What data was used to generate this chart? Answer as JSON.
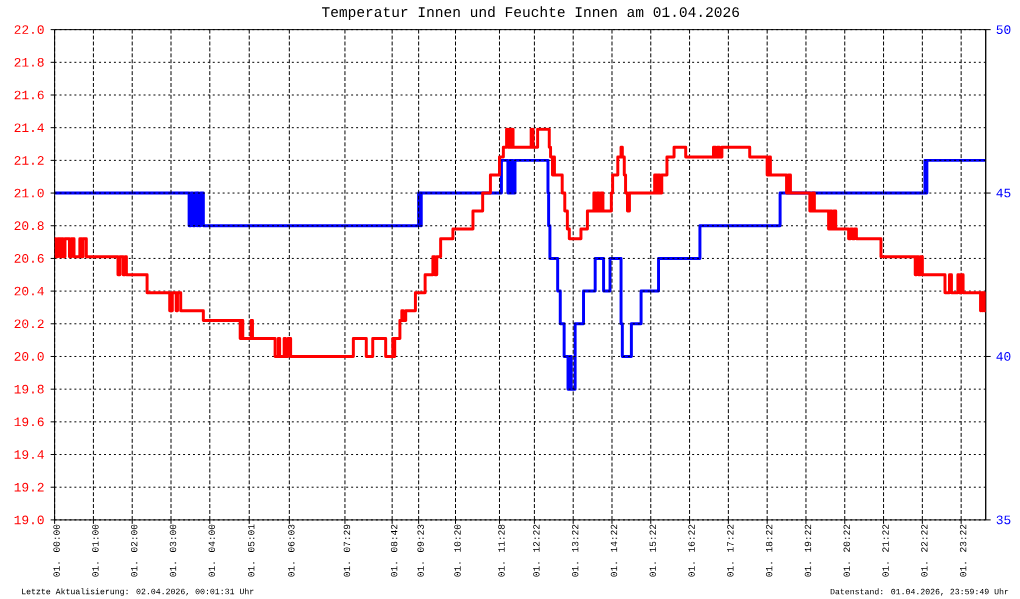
{
  "chart_data": {
    "type": "step",
    "title": "Temperatur Innen und Feuchte Innen am 01.04.2026",
    "annotations": [
      "Letzte Aktualisierung: 02.04.2026, 00:01:31 Uhr",
      "Datenstand: 01.04.2026, 23:59:49 Uhr"
    ],
    "xlim": [
      "2026-04-01T00:00",
      "2026-04-02T00:00"
    ],
    "xticks": [
      {
        "value": "2026-04-01T00:00",
        "label": "01. 00:00"
      },
      {
        "value": "2026-04-01T01:00",
        "label": "01. 01:00"
      },
      {
        "value": "2026-04-01T02:00",
        "label": "01. 02:00"
      },
      {
        "value": "2026-04-01T03:00",
        "label": "01. 03:00"
      },
      {
        "value": "2026-04-01T04:00",
        "label": "01. 04:00"
      },
      {
        "value": "2026-04-01T05:01",
        "label": "01. 05:01"
      },
      {
        "value": "2026-04-01T06:03",
        "label": "01. 06:03"
      },
      {
        "value": "2026-04-01T07:29",
        "label": "01. 07:29"
      },
      {
        "value": "2026-04-01T08:42",
        "label": "01. 08:42"
      },
      {
        "value": "2026-04-01T09:23",
        "label": "01. 09:23"
      },
      {
        "value": "2026-04-01T10:20",
        "label": "01. 10:20"
      },
      {
        "value": "2026-04-01T11:28",
        "label": "01. 11:28"
      },
      {
        "value": "2026-04-01T12:22",
        "label": "01. 12:22"
      },
      {
        "value": "2026-04-01T13:22",
        "label": "01. 13:22"
      },
      {
        "value": "2026-04-01T14:22",
        "label": "01. 14:22"
      },
      {
        "value": "2026-04-01T15:22",
        "label": "01. 15:22"
      },
      {
        "value": "2026-04-01T16:22",
        "label": "01. 16:22"
      },
      {
        "value": "2026-04-01T17:22",
        "label": "01. 17:22"
      },
      {
        "value": "2026-04-01T18:22",
        "label": "01. 18:22"
      },
      {
        "value": "2026-04-01T19:22",
        "label": "01. 19:22"
      },
      {
        "value": "2026-04-01T20:22",
        "label": "01. 20:22"
      },
      {
        "value": "2026-04-01T21:22",
        "label": "01. 21:22"
      },
      {
        "value": "2026-04-01T22:22",
        "label": "01. 22:22"
      },
      {
        "value": "2026-04-01T23:22",
        "label": "01. 23:22"
      }
    ],
    "ylim": [
      19,
      22
    ],
    "yticks": [
      {
        "value": 19,
        "label": "19.0"
      },
      19.2,
      19.4,
      19.6,
      19.8,
      {
        "value": 20,
        "label": "20.0"
      },
      20.2,
      20.4,
      20.6,
      20.8,
      {
        "value": 21,
        "label": "21.0"
      },
      21.2,
      21.4,
      21.6,
      21.8,
      {
        "value": 22,
        "label": "22.0"
      }
    ],
    "y2lim": [
      35,
      50
    ],
    "y2ticks": [
      35,
      40,
      45,
      50
    ],
    "grid": true,
    "series": [
      {
        "color": "#ff0000",
        "x": [
          "2026-04-01T00:00",
          "2026-04-01T00:02",
          "2026-04-01T00:05",
          "2026-04-01T00:09",
          "2026-04-01T00:11",
          "2026-04-01T00:13",
          "2026-04-01T00:16",
          "2026-04-01T00:23",
          "2026-04-01T00:26",
          "2026-04-01T00:30",
          "2026-04-01T00:39",
          "2026-04-01T00:42",
          "2026-04-01T00:44",
          "2026-04-01T00:49",
          "2026-04-01T01:38",
          "2026-04-01T01:41",
          "2026-04-01T01:46",
          "2026-04-01T01:49",
          "2026-04-01T01:51",
          "2026-04-01T02:23",
          "2026-04-01T02:58",
          "2026-04-01T03:02",
          "2026-04-01T03:08",
          "2026-04-01T03:10",
          "2026-04-01T03:15",
          "2026-04-01T03:50",
          "2026-04-01T04:47",
          "2026-04-01T04:49",
          "2026-04-01T04:51",
          "2026-04-01T05:04",
          "2026-04-01T05:06",
          "2026-04-01T05:41",
          "2026-04-01T05:46",
          "2026-04-01T05:48",
          "2026-04-01T05:55",
          "2026-04-01T05:57",
          "2026-04-01T06:01",
          "2026-04-01T06:05",
          "2026-04-01T07:42",
          "2026-04-01T08:02",
          "2026-04-01T08:12",
          "2026-04-01T08:32",
          "2026-04-01T08:43",
          "2026-04-01T08:44",
          "2026-04-01T08:46",
          "2026-04-01T08:54",
          "2026-04-01T08:57",
          "2026-04-01T08:59",
          "2026-04-01T09:03",
          "2026-04-01T09:18",
          "2026-04-01T09:33",
          "2026-04-01T09:45",
          "2026-04-01T09:48",
          "2026-04-01T09:51",
          "2026-04-01T09:57",
          "2026-04-01T10:16",
          "2026-04-01T10:47",
          "2026-04-01T11:02",
          "2026-04-01T11:14",
          "2026-04-01T11:28",
          "2026-04-01T11:34",
          "2026-04-01T11:39",
          "2026-04-01T11:41",
          "2026-04-01T11:43",
          "2026-04-01T11:46",
          "2026-04-01T11:47",
          "2026-04-01T11:49",
          "2026-04-01T12:17",
          "2026-04-01T12:20",
          "2026-04-01T12:27",
          "2026-04-01T12:45",
          "2026-04-01T12:47",
          "2026-04-01T12:50",
          "2026-04-01T12:52",
          "2026-04-01T12:53",
          "2026-04-01T13:05",
          "2026-04-01T13:09",
          "2026-04-01T13:13",
          "2026-04-01T13:16",
          "2026-04-01T13:34",
          "2026-04-01T13:44",
          "2026-04-01T13:54",
          "2026-04-01T13:56",
          "2026-04-01T13:59",
          "2026-04-01T14:02",
          "2026-04-01T14:05",
          "2026-04-01T14:08",
          "2026-04-01T14:21",
          "2026-04-01T14:23",
          "2026-04-01T14:31",
          "2026-04-01T14:36",
          "2026-04-01T14:38",
          "2026-04-01T14:41",
          "2026-04-01T14:43",
          "2026-04-01T14:46",
          "2026-04-01T14:49",
          "2026-04-01T15:28",
          "2026-04-01T15:31",
          "2026-04-01T15:33",
          "2026-04-01T15:36",
          "2026-04-01T15:39",
          "2026-04-01T15:47",
          "2026-04-01T15:58",
          "2026-04-01T16:16",
          "2026-04-01T16:59",
          "2026-04-01T17:02",
          "2026-04-01T17:05",
          "2026-04-01T17:08",
          "2026-04-01T17:12",
          "2026-04-01T17:55",
          "2026-04-01T18:22",
          "2026-04-01T18:25",
          "2026-04-01T18:27",
          "2026-04-01T18:52",
          "2026-04-01T18:55",
          "2026-04-01T18:58",
          "2026-04-01T19:28",
          "2026-04-01T19:32",
          "2026-04-01T19:35",
          "2026-04-01T19:57",
          "2026-04-01T19:59",
          "2026-04-01T20:02",
          "2026-04-01T20:05",
          "2026-04-01T20:08",
          "2026-04-01T20:28",
          "2026-04-01T20:31",
          "2026-04-01T20:34",
          "2026-04-01T20:37",
          "2026-04-01T20:40",
          "2026-04-01T21:18",
          "2026-04-01T22:11",
          "2026-04-01T22:13",
          "2026-04-01T22:16",
          "2026-04-01T22:19",
          "2026-04-01T22:22",
          "2026-04-01T22:57",
          "2026-04-01T23:04",
          "2026-04-01T23:07",
          "2026-04-01T23:17",
          "2026-04-01T23:19",
          "2026-04-01T23:22",
          "2026-04-01T23:25",
          "2026-04-01T23:52",
          "2026-04-01T23:53",
          "2026-04-01T23:55",
          "2026-04-01T23:56",
          "2026-04-01T23:58",
          "2026-04-01T23:59"
        ],
        "values": [
          20.72,
          20.61,
          20.72,
          20.61,
          20.72,
          20.61,
          20.72,
          20.61,
          20.72,
          20.61,
          20.72,
          20.61,
          20.72,
          20.61,
          20.5,
          20.61,
          20.5,
          20.61,
          20.5,
          20.39,
          20.28,
          20.39,
          20.28,
          20.39,
          20.28,
          20.22,
          20.11,
          20.22,
          20.11,
          20.22,
          20.11,
          20.0,
          20.11,
          20.0,
          20.11,
          20.0,
          20.11,
          20.0,
          20.11,
          20.0,
          20.11,
          20.0,
          20.11,
          20.0,
          20.11,
          20.22,
          20.28,
          20.22,
          20.28,
          20.39,
          20.5,
          20.61,
          20.5,
          20.61,
          20.72,
          20.78,
          20.89,
          21.0,
          21.11,
          21.22,
          21.28,
          21.39,
          21.28,
          21.39,
          21.28,
          21.39,
          21.28,
          21.39,
          21.28,
          21.39,
          21.28,
          21.22,
          21.11,
          21.22,
          21.11,
          21.0,
          20.89,
          20.78,
          20.72,
          20.78,
          20.89,
          21.0,
          20.89,
          21.0,
          20.89,
          21.0,
          20.89,
          21.0,
          21.11,
          21.22,
          21.28,
          21.22,
          21.11,
          21.0,
          20.89,
          21.0,
          21.11,
          21.0,
          21.11,
          21.0,
          21.11,
          21.22,
          21.28,
          21.22,
          21.28,
          21.22,
          21.28,
          21.22,
          21.28,
          21.22,
          21.11,
          21.22,
          21.11,
          21.0,
          21.11,
          21.0,
          20.89,
          21.0,
          20.89,
          20.78,
          20.89,
          20.78,
          20.89,
          20.78,
          20.72,
          20.78,
          20.72,
          20.78,
          20.72,
          20.61,
          20.5,
          20.61,
          20.5,
          20.61,
          20.5,
          20.39,
          20.5,
          20.39,
          20.5,
          20.39,
          20.5,
          20.39,
          20.28,
          20.39,
          20.28,
          20.39,
          20.28,
          20.28
        ]
      },
      {
        "color": "#0000ff",
        "axis": "y2",
        "x": [
          "2026-04-01T00:00",
          "2026-04-01T03:28",
          "2026-04-01T03:31",
          "2026-04-01T03:34",
          "2026-04-01T03:37",
          "2026-04-01T03:40",
          "2026-04-01T03:41",
          "2026-04-01T03:43",
          "2026-04-01T03:46",
          "2026-04-01T03:50",
          "2026-04-01T09:23",
          "2026-04-01T09:26",
          "2026-04-01T09:27",
          "2026-04-01T11:31",
          "2026-04-01T11:41",
          "2026-04-01T11:44",
          "2026-04-01T11:46",
          "2026-04-01T11:48",
          "2026-04-01T11:49",
          "2026-04-01T11:52",
          "2026-04-01T12:43",
          "2026-04-01T12:44",
          "2026-04-01T12:46",
          "2026-04-01T12:58",
          "2026-04-01T13:02",
          "2026-04-01T13:08",
          "2026-04-01T13:14",
          "2026-04-01T13:17",
          "2026-04-01T13:19",
          "2026-04-01T13:25",
          "2026-04-01T13:38",
          "2026-04-01T13:56",
          "2026-04-01T14:09",
          "2026-04-01T14:19",
          "2026-04-01T14:36",
          "2026-04-01T14:38",
          "2026-04-01T14:52",
          "2026-04-01T15:07",
          "2026-04-01T15:34",
          "2026-04-01T16:38",
          "2026-04-01T18:42",
          "2026-04-01T22:26",
          "2026-04-01T22:28",
          "2026-04-01T22:29",
          "2026-04-01T23:59"
        ],
        "values": [
          45,
          44,
          45,
          44,
          45,
          44,
          45,
          44,
          45,
          44,
          45,
          44,
          45,
          46,
          45,
          46,
          45,
          46,
          45,
          46,
          45,
          44,
          43,
          42,
          41,
          40,
          39,
          40,
          39,
          41,
          42,
          43,
          42,
          43,
          41,
          40,
          41,
          42,
          43,
          44,
          45,
          46,
          45,
          46,
          46
        ]
      }
    ]
  }
}
